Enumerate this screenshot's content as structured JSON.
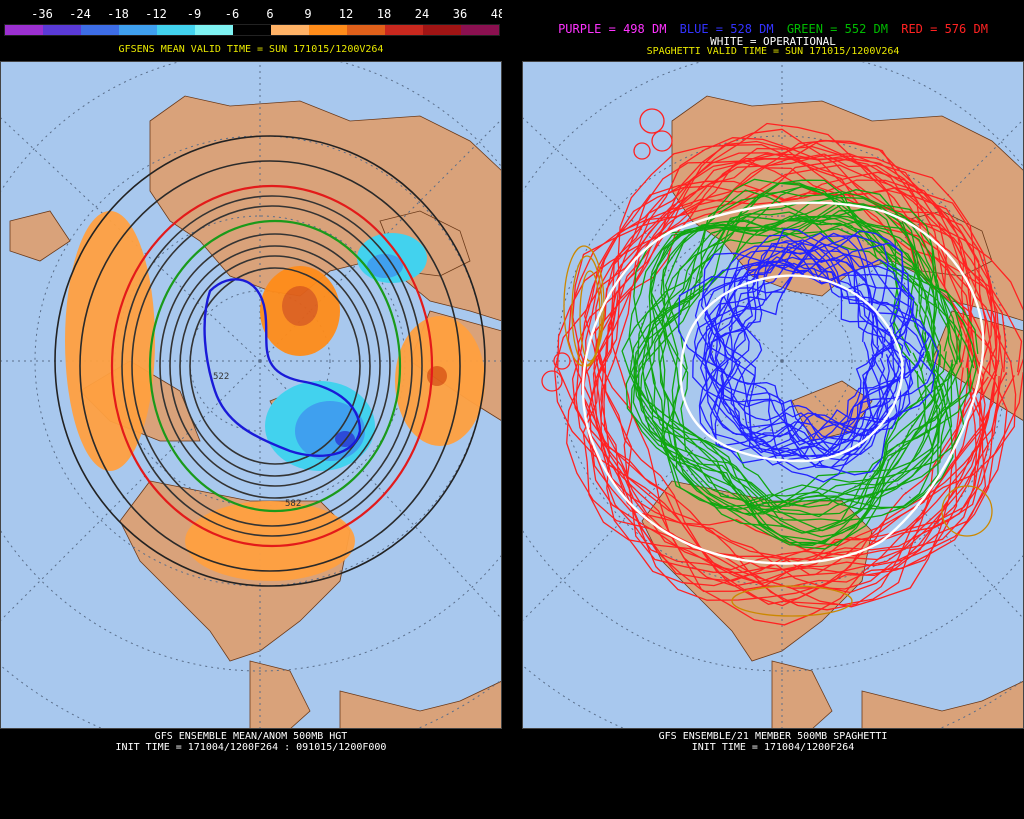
{
  "left": {
    "colorbar": {
      "ticks": [
        "-36",
        "-24",
        "-18",
        "-12",
        "-9",
        "-6",
        "6",
        "9",
        "12",
        "18",
        "24",
        "36",
        "48"
      ],
      "colors": [
        "#9b30d0",
        "#5a3ad6",
        "#3d6de6",
        "#3fa0ef",
        "#42d2ee",
        "#7ef2f2",
        "#000000",
        "#ffb266",
        "#ff8c1a",
        "#e0601a",
        "#c8281e",
        "#a01414",
        "#8a1050"
      ]
    },
    "title": "GFSENS MEAN VALID TIME = SUN 171015/1200V264",
    "contour_labels": [
      "522",
      "582"
    ],
    "footer_line1": "GFS ENSEMBLE MEAN/ANOM 500MB HGT",
    "footer_line2": "INIT TIME = 171004/1200F264 : 091015/1200F000"
  },
  "right": {
    "legend": [
      {
        "label": "PURPLE = 498 DM",
        "color": "#ff33ff"
      },
      {
        "label": "BLUE = 528 DM",
        "color": "#3333ff"
      },
      {
        "label": "GREEN = 552 DM",
        "color": "#00bb00"
      },
      {
        "label": "RED = 576 DM",
        "color": "#ff2222"
      }
    ],
    "operational": "WHITE = OPERATIONAL",
    "title": "SPAGHETTI VALID TIME = SUN 171015/1200V264",
    "footer_line1": "GFS ENSEMBLE/21 MEMBER 500MB SPAGHETTI",
    "footer_line2": "INIT TIME = 171004/1200F264"
  },
  "map_colors": {
    "ocean": "#a8c8ee",
    "land": "#d9a27a",
    "border": "#6b3a1a",
    "grid": "#5a6e8a"
  }
}
